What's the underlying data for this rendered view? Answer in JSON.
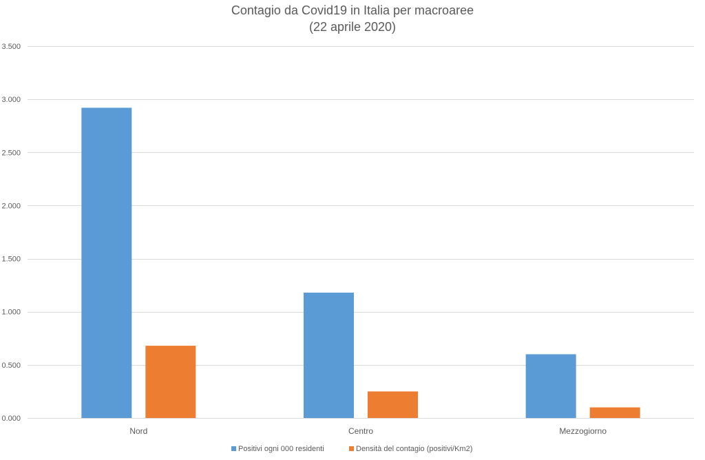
{
  "chart_data": {
    "type": "bar",
    "title": "Contagio da Covid19 in Italia per macroaree",
    "subtitle": "(22 aprile 2020)",
    "categories": [
      "Nord",
      "Centro",
      "Mezzogiorno"
    ],
    "series": [
      {
        "name": "Positivi ogni 000 residenti",
        "color": "#5b9bd5",
        "values": [
          2.92,
          1.18,
          0.6
        ]
      },
      {
        "name": "Densità del contagio (positivi/Km2)",
        "color": "#ed7d31",
        "values": [
          0.68,
          0.25,
          0.1
        ]
      }
    ],
    "ylim": [
      0,
      3.5
    ],
    "yticks": [
      0,
      0.5,
      1,
      1.5,
      2,
      2.5,
      3,
      3.5
    ],
    "ytick_labels": [
      "0.000",
      "0.500",
      "1.000",
      "1.500",
      "2.000",
      "2.500",
      "3.000",
      "3.500"
    ],
    "xlabel": "",
    "ylabel": "",
    "grid": true,
    "legend_position": "bottom"
  }
}
